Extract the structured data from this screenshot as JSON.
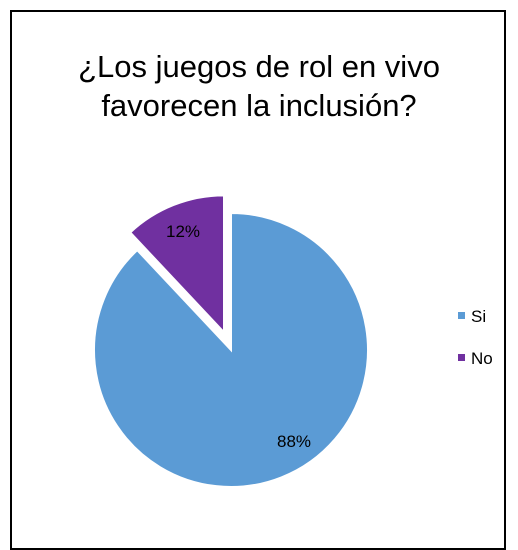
{
  "chart_data": {
    "type": "pie",
    "title_lines": [
      "¿Los juegos de rol en vivo",
      "favorecen la inclusión?"
    ],
    "categories": [
      "Si",
      "No"
    ],
    "values": [
      88,
      12
    ],
    "labels": [
      "88%",
      "12%"
    ],
    "colors": [
      "#5B9BD5",
      "#7030A0"
    ],
    "exploded": [
      "No"
    ],
    "legend_position": "right"
  }
}
